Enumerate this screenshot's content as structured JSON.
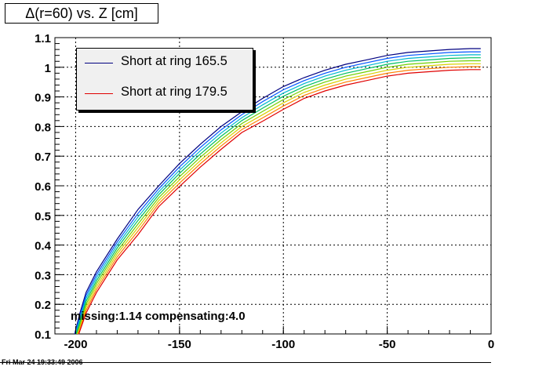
{
  "chart_data": {
    "type": "line",
    "title": "Δ(r=60) vs. Z [cm]",
    "xlabel": "",
    "ylabel": "",
    "xlim": [
      -210,
      0
    ],
    "ylim": [
      0.1,
      1.1
    ],
    "xticks": [
      -200,
      -150,
      -100,
      -50,
      0
    ],
    "xtick_labels": [
      "-200",
      "-150",
      "-100",
      "-50",
      "0"
    ],
    "yticks": [
      0.1,
      0.2,
      0.3,
      0.4,
      0.5,
      0.6,
      0.7,
      0.8,
      0.9,
      1,
      1.1
    ],
    "ytick_labels": [
      "0.1",
      "0.2",
      "0.3",
      "0.4",
      "0.5",
      "0.6",
      "0.7",
      "0.8",
      "0.9",
      "1",
      "1.1"
    ],
    "grid": true,
    "legend_position": "top-left",
    "legend": [
      "Short at ring 165.5",
      "Short at ring 179.5"
    ],
    "annotation": "missing:1.14 compensating:4.0",
    "series": [
      {
        "name": "Short at ring 165.5",
        "color": "#000080",
        "x": [
          -200.5,
          -198,
          -195,
          -190,
          -180,
          -170,
          -160,
          -150,
          -140,
          -130,
          -120,
          -110,
          -100,
          -90,
          -80,
          -70,
          -60,
          -50,
          -40,
          -30,
          -20,
          -10,
          -5
        ],
        "y": [
          0.1,
          0.17,
          0.24,
          0.31,
          0.42,
          0.52,
          0.6,
          0.675,
          0.74,
          0.8,
          0.85,
          0.895,
          0.935,
          0.965,
          0.99,
          1.01,
          1.025,
          1.04,
          1.05,
          1.055,
          1.06,
          1.063,
          1.063
        ]
      },
      {
        "color": "#0055ff",
        "x": [
          -200.3,
          -198,
          -195,
          -190,
          -180,
          -170,
          -160,
          -150,
          -140,
          -130,
          -120,
          -110,
          -100,
          -90,
          -80,
          -70,
          -60,
          -50,
          -40,
          -30,
          -20,
          -10,
          -5
        ],
        "y": [
          0.1,
          0.16,
          0.23,
          0.3,
          0.41,
          0.507,
          0.59,
          0.664,
          0.729,
          0.789,
          0.84,
          0.884,
          0.924,
          0.955,
          0.98,
          1.0,
          1.015,
          1.03,
          1.04,
          1.045,
          1.05,
          1.052,
          1.052
        ]
      },
      {
        "color": "#00b7d0",
        "x": [
          -200.0,
          -198,
          -195,
          -190,
          -180,
          -170,
          -160,
          -150,
          -140,
          -130,
          -120,
          -110,
          -100,
          -90,
          -80,
          -70,
          -60,
          -50,
          -40,
          -30,
          -20,
          -10,
          -5
        ],
        "y": [
          0.1,
          0.15,
          0.22,
          0.29,
          0.4,
          0.495,
          0.58,
          0.653,
          0.718,
          0.778,
          0.83,
          0.873,
          0.913,
          0.945,
          0.97,
          0.99,
          1.005,
          1.02,
          1.03,
          1.035,
          1.04,
          1.042,
          1.042
        ]
      },
      {
        "color": "#00c060",
        "x": [
          -199.7,
          -198,
          -195,
          -190,
          -180,
          -170,
          -160,
          -150,
          -140,
          -130,
          -120,
          -110,
          -100,
          -90,
          -80,
          -70,
          -60,
          -50,
          -40,
          -30,
          -20,
          -10,
          -5
        ],
        "y": [
          0.1,
          0.14,
          0.21,
          0.28,
          0.39,
          0.483,
          0.57,
          0.642,
          0.707,
          0.767,
          0.82,
          0.862,
          0.902,
          0.935,
          0.96,
          0.98,
          0.995,
          1.01,
          1.02,
          1.025,
          1.03,
          1.032,
          1.032
        ]
      },
      {
        "color": "#70d000",
        "x": [
          -199.4,
          -198,
          -195,
          -190,
          -180,
          -170,
          -160,
          -150,
          -140,
          -130,
          -120,
          -110,
          -100,
          -90,
          -80,
          -70,
          -60,
          -50,
          -40,
          -30,
          -20,
          -10,
          -5
        ],
        "y": [
          0.1,
          0.13,
          0.2,
          0.27,
          0.38,
          0.471,
          0.56,
          0.631,
          0.696,
          0.756,
          0.81,
          0.851,
          0.891,
          0.925,
          0.95,
          0.97,
          0.985,
          1.0,
          1.01,
          1.015,
          1.02,
          1.022,
          1.022
        ]
      },
      {
        "color": "#d8d000",
        "x": [
          -199.1,
          -198,
          -195,
          -190,
          -180,
          -170,
          -160,
          -150,
          -140,
          -130,
          -120,
          -110,
          -100,
          -90,
          -80,
          -70,
          -60,
          -50,
          -40,
          -30,
          -20,
          -10,
          -5
        ],
        "y": [
          0.1,
          0.12,
          0.19,
          0.26,
          0.37,
          0.459,
          0.55,
          0.62,
          0.685,
          0.745,
          0.8,
          0.84,
          0.88,
          0.915,
          0.94,
          0.96,
          0.975,
          0.99,
          1.0,
          1.005,
          1.01,
          1.012,
          1.012
        ]
      },
      {
        "color": "#ff8000",
        "x": [
          -198.8,
          -198,
          -195,
          -190,
          -180,
          -170,
          -160,
          -150,
          -140,
          -130,
          -120,
          -110,
          -100,
          -90,
          -80,
          -70,
          -60,
          -50,
          -40,
          -30,
          -20,
          -10,
          -5
        ],
        "y": [
          0.1,
          0.115,
          0.18,
          0.25,
          0.36,
          0.447,
          0.54,
          0.609,
          0.674,
          0.734,
          0.79,
          0.829,
          0.869,
          0.905,
          0.93,
          0.95,
          0.965,
          0.98,
          0.99,
          0.995,
          1.0,
          1.002,
          1.002
        ]
      },
      {
        "name": "Short at ring 179.5",
        "color": "#e00000",
        "x": [
          -198.5,
          -198,
          -195,
          -190,
          -180,
          -170,
          -160,
          -150,
          -140,
          -130,
          -120,
          -110,
          -100,
          -90,
          -80,
          -70,
          -60,
          -50,
          -40,
          -30,
          -20,
          -10,
          -5
        ],
        "y": [
          0.1,
          0.11,
          0.17,
          0.24,
          0.35,
          0.435,
          0.53,
          0.598,
          0.663,
          0.723,
          0.78,
          0.818,
          0.858,
          0.895,
          0.92,
          0.94,
          0.955,
          0.97,
          0.98,
          0.985,
          0.99,
          0.992,
          0.992
        ]
      }
    ]
  },
  "footer": {
    "datestamp": "Fri Mar 24 19:33:49 2006"
  }
}
